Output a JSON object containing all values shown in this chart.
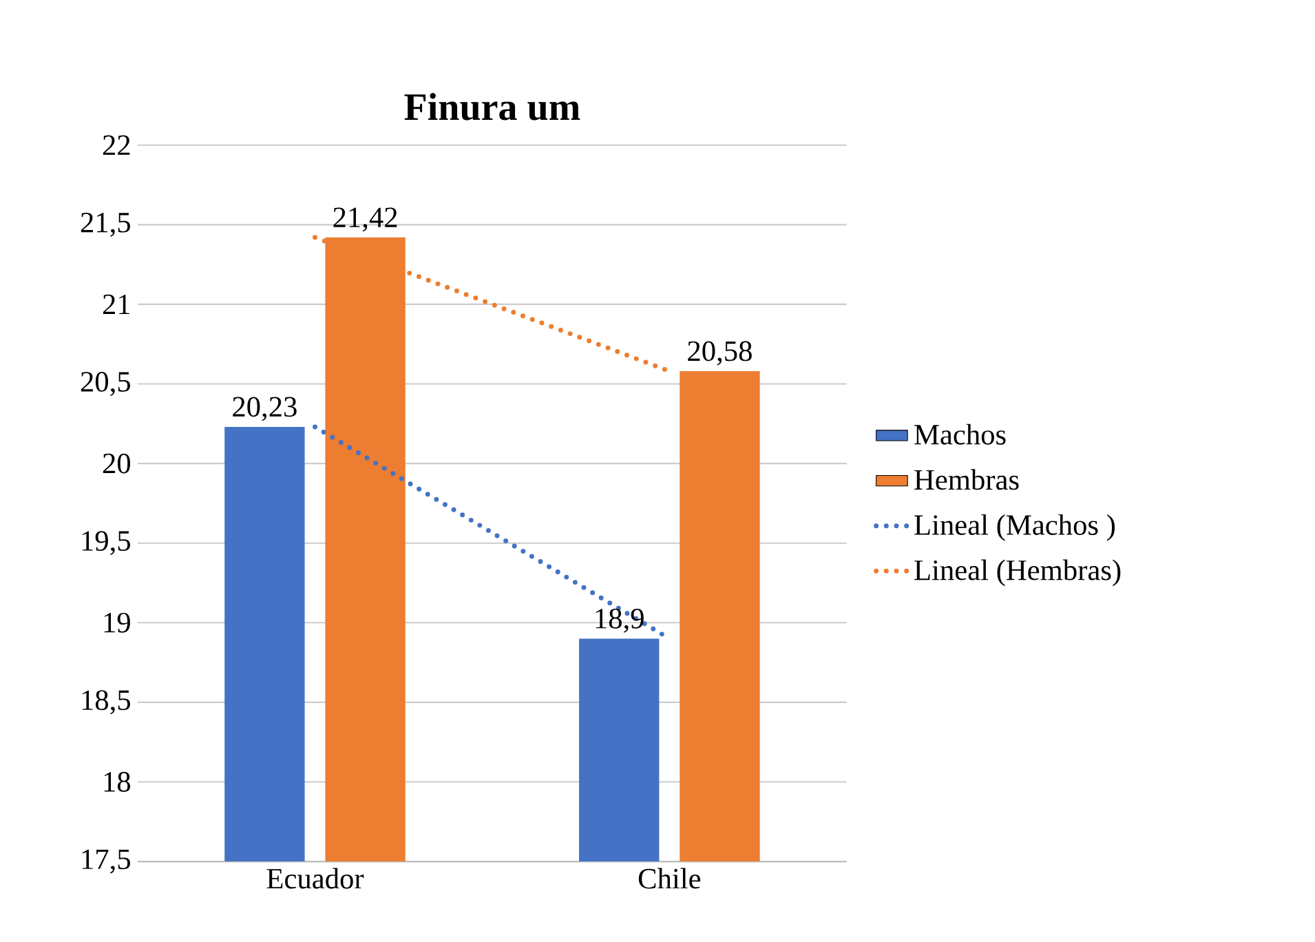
{
  "chart_data": {
    "type": "bar",
    "title": "Finura um",
    "categories": [
      "Ecuador",
      "Chile"
    ],
    "series": [
      {
        "name": "Machos",
        "color": "#4472c4",
        "values": [
          20.23,
          18.9
        ],
        "value_labels": [
          "20,23",
          "18,9"
        ]
      },
      {
        "name": "Hembras",
        "color": "#ed7d31",
        "values": [
          21.42,
          20.58
        ],
        "value_labels": [
          "21,42",
          "20,58"
        ]
      },
      {
        "name": "Lineal (Machos )",
        "type": "line",
        "line_style": "dotted",
        "color": "#4472c4",
        "values": [
          20.23,
          18.9
        ]
      },
      {
        "name": "Lineal (Hembras)",
        "type": "line",
        "line_style": "dotted",
        "color": "#ed7d31",
        "values": [
          21.42,
          20.58
        ]
      }
    ],
    "ylim": [
      17.5,
      22
    ],
    "yticks": [
      {
        "value": 17.5,
        "label": "17,5"
      },
      18,
      {
        "value": 18.5,
        "label": "18,5"
      },
      19,
      {
        "value": 19.5,
        "label": "19,5"
      },
      20,
      {
        "value": 20.5,
        "label": "20,5"
      },
      21,
      {
        "value": 21.5,
        "label": "21,5"
      },
      22
    ],
    "grid": "y",
    "legend": "right"
  }
}
